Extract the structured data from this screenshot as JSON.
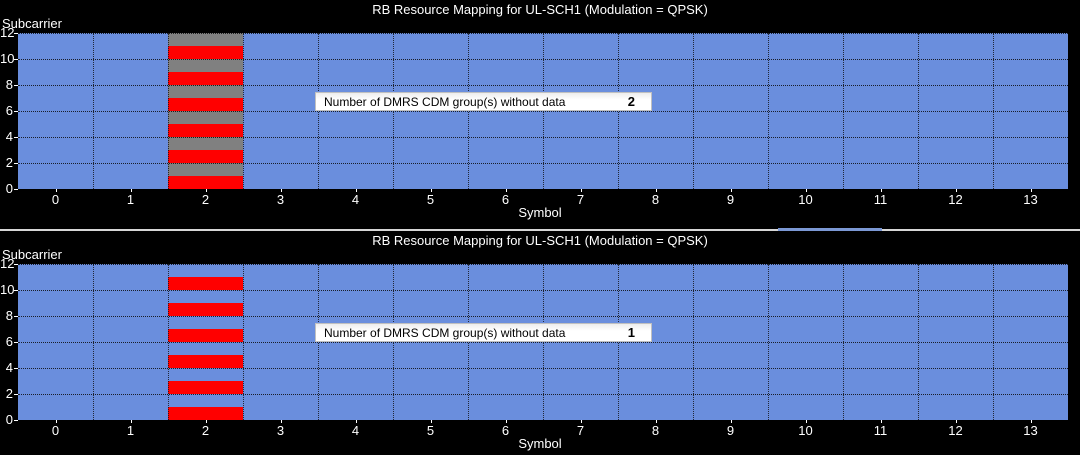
{
  "figures": [
    {
      "title": "RB Resource Mapping for UL-SCH1 (Modulation = QPSK)",
      "ylabel": "Subcarrier",
      "xlabel": "Symbol",
      "annotation": {
        "label": "Number of DMRS CDM group(s) without data",
        "value": "2"
      }
    },
    {
      "title": "RB Resource Mapping for UL-SCH1 (Modulation = QPSK)",
      "ylabel": "Subcarrier",
      "xlabel": "Symbol",
      "annotation": {
        "label": "Number of DMRS CDM group(s) without data",
        "value": "1"
      }
    }
  ],
  "chart_data": [
    {
      "type": "heatmap",
      "title": "RB Resource Mapping for UL-SCH1 (Modulation = QPSK)",
      "xlabel": "Symbol",
      "ylabel": "Subcarrier",
      "xlim": [
        -0.5,
        13.5
      ],
      "ylim": [
        0,
        12
      ],
      "n_symbols": 14,
      "n_subcarriers": 12,
      "x_ticks": [
        0,
        1,
        2,
        3,
        4,
        5,
        6,
        7,
        8,
        9,
        10,
        11,
        12,
        13
      ],
      "y_ticks": [
        0,
        2,
        4,
        6,
        8,
        10,
        12
      ],
      "grid": "dotted",
      "annotation": {
        "label": "Number of DMRS CDM group(s) without data",
        "value": 2
      },
      "cells": {
        "default": "data",
        "dmrs_symbol": 2,
        "dmrs_subcarriers": [
          0,
          2,
          4,
          6,
          8,
          10
        ],
        "nodata_subcarriers": [
          1,
          3,
          5,
          7,
          9,
          11
        ]
      },
      "colors": {
        "data": "#6a8edd",
        "dmrs": "#ff0000",
        "nodata": "#808080",
        "background": "#000000"
      }
    },
    {
      "type": "heatmap",
      "title": "RB Resource Mapping for UL-SCH1 (Modulation = QPSK)",
      "xlabel": "Symbol",
      "ylabel": "Subcarrier",
      "xlim": [
        -0.5,
        13.5
      ],
      "ylim": [
        0,
        12
      ],
      "n_symbols": 14,
      "n_subcarriers": 12,
      "x_ticks": [
        0,
        1,
        2,
        3,
        4,
        5,
        6,
        7,
        8,
        9,
        10,
        11,
        12,
        13
      ],
      "y_ticks": [
        0,
        2,
        4,
        6,
        8,
        10,
        12
      ],
      "grid": "dotted",
      "annotation": {
        "label": "Number of DMRS CDM group(s) without data",
        "value": 1
      },
      "cells": {
        "default": "data",
        "dmrs_symbol": 2,
        "dmrs_subcarriers": [
          0,
          2,
          4,
          6,
          8,
          10
        ],
        "nodata_subcarriers": []
      },
      "colors": {
        "data": "#6a8edd",
        "dmrs": "#ff0000",
        "nodata": "#808080",
        "background": "#000000"
      }
    }
  ],
  "divider": {
    "track_color": "#d6d6d6",
    "thumb_color": "#7b98d4"
  }
}
